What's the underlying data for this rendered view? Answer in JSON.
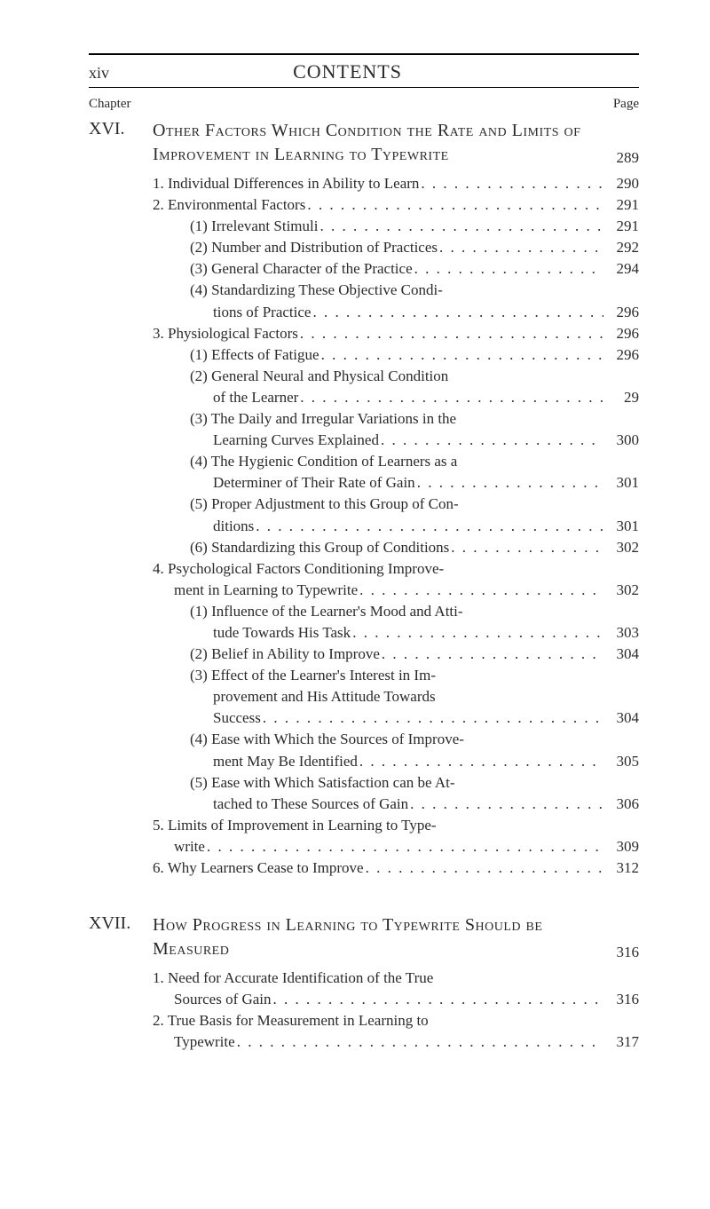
{
  "header": {
    "page_roman": "xiv",
    "title": "CONTENTS",
    "chapter_label": "Chapter",
    "page_label": "Page"
  },
  "chapters": [
    {
      "num": "XVI.",
      "title": "Other Factors Which Condition the Rate and Limits of Improvement in Learning to Typewrite",
      "page": "289",
      "entries": [
        {
          "indent": 1,
          "text": "1. Individual Differences in Ability to Learn",
          "page": "290"
        },
        {
          "indent": 1,
          "text": "2. Environmental Factors",
          "page": "291"
        },
        {
          "indent": 2,
          "text": "(1) Irrelevant Stimuli",
          "page": "291"
        },
        {
          "indent": 2,
          "text": "(2) Number and Distribution of Practices",
          "page": "292"
        },
        {
          "indent": 2,
          "text": "(3) General Character of the Practice",
          "page": "294"
        },
        {
          "indent": 2,
          "text": "(4) Standardizing These Objective Condi-",
          "page": "",
          "no_dots": true
        },
        {
          "indent": 2,
          "cont": true,
          "text": "tions of Practice",
          "page": "296"
        },
        {
          "indent": 1,
          "text": "3. Physiological Factors",
          "page": "296"
        },
        {
          "indent": 2,
          "text": "(1) Effects of Fatigue",
          "page": "296"
        },
        {
          "indent": 2,
          "text": "(2) General Neural and Physical Condition",
          "page": "",
          "no_dots": true
        },
        {
          "indent": 2,
          "cont": true,
          "text": "of the Learner",
          "page": "29"
        },
        {
          "indent": 2,
          "text": "(3) The Daily and Irregular Variations in the",
          "page": "",
          "no_dots": true
        },
        {
          "indent": 2,
          "cont": true,
          "text": "Learning Curves Explained",
          "page": "300"
        },
        {
          "indent": 2,
          "text": "(4) The Hygienic Condition of Learners as a",
          "page": "",
          "no_dots": true
        },
        {
          "indent": 2,
          "cont": true,
          "text": "Determiner of Their Rate of Gain",
          "page": "301"
        },
        {
          "indent": 2,
          "text": "(5) Proper Adjustment to this Group of Con-",
          "page": "",
          "no_dots": true
        },
        {
          "indent": 2,
          "cont": true,
          "text": "ditions",
          "page": "301"
        },
        {
          "indent": 2,
          "text": "(6) Standardizing this Group of Conditions",
          "page": "302"
        },
        {
          "indent": 1,
          "text": "4. Psychological Factors Conditioning Improve-",
          "page": "",
          "no_dots": true
        },
        {
          "indent": 1,
          "cont": true,
          "text": "ment in Learning to Typewrite",
          "page": "302"
        },
        {
          "indent": 2,
          "text": "(1) Influence of the Learner's Mood and Atti-",
          "page": "",
          "no_dots": true
        },
        {
          "indent": 2,
          "cont": true,
          "text": "tude Towards His Task",
          "page": "303"
        },
        {
          "indent": 2,
          "text": "(2) Belief in Ability to Improve",
          "page": "304"
        },
        {
          "indent": 2,
          "text": "(3) Effect of the Learner's Interest in Im-",
          "page": "",
          "no_dots": true
        },
        {
          "indent": 2,
          "cont": true,
          "text": "provement and His Attitude Towards",
          "page": "",
          "no_dots": true
        },
        {
          "indent": 2,
          "cont": true,
          "text": "Success",
          "page": "304"
        },
        {
          "indent": 2,
          "text": "(4) Ease with Which the Sources of Improve-",
          "page": "",
          "no_dots": true
        },
        {
          "indent": 2,
          "cont": true,
          "text": "ment May Be Identified",
          "page": "305"
        },
        {
          "indent": 2,
          "text": "(5) Ease with Which Satisfaction can be At-",
          "page": "",
          "no_dots": true
        },
        {
          "indent": 2,
          "cont": true,
          "text": "tached to These Sources of Gain",
          "page": "306"
        },
        {
          "indent": 1,
          "text": "5. Limits of Improvement in Learning to Type-",
          "page": "",
          "no_dots": true
        },
        {
          "indent": 1,
          "cont": true,
          "text": "write",
          "page": "309"
        },
        {
          "indent": 1,
          "text": "6. Why Learners Cease to Improve",
          "page": "312"
        }
      ]
    },
    {
      "num": "XVII.",
      "title": "How Progress in Learning to Typewrite Should be Measured",
      "page": "316",
      "entries": [
        {
          "indent": 1,
          "text": "1. Need for Accurate Identification of the True",
          "page": "",
          "no_dots": true
        },
        {
          "indent": 1,
          "cont": true,
          "text": "Sources of Gain",
          "page": "316"
        },
        {
          "indent": 1,
          "text": "2. True Basis for Measurement in Learning to",
          "page": "",
          "no_dots": true
        },
        {
          "indent": 1,
          "cont": true,
          "text": "Typewrite",
          "page": "317"
        }
      ]
    }
  ],
  "colors": {
    "text": "#2a2a2a",
    "background": "#ffffff",
    "rule": "#000000"
  },
  "typography": {
    "body_font": "Georgia, Times New Roman, serif",
    "header_title_size": 22,
    "chapter_title_size": 20,
    "entry_size": 17,
    "label_size": 15
  }
}
